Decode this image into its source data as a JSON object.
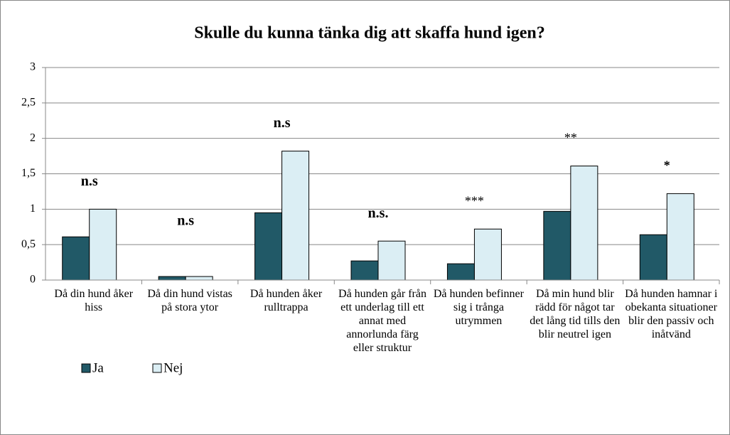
{
  "chart_data": {
    "type": "bar",
    "title": "Skulle du kunna tänka dig att skaffa hund igen?",
    "categories": [
      "Då din hund åker hiss",
      "Då din hund vistas på stora ytor",
      "Då hunden åker rulltrappa",
      "Då hunden går från ett underlag till ett annat med annorlunda färg eller struktur",
      "Då hunden befinner sig i trånga utrymmen",
      "Då min hund blir rädd för något tar det lång tid tills den blir neutrel igen",
      "Då hunden hamnar i obekanta situationer blir den passiv och inåtvänd"
    ],
    "series": [
      {
        "name": "Ja",
        "color": "#215967",
        "values": [
          0.61,
          0.05,
          0.95,
          0.27,
          0.23,
          0.97,
          0.64
        ]
      },
      {
        "name": "Nej",
        "color": "#dbeef4",
        "values": [
          1.0,
          0.05,
          1.82,
          0.55,
          0.72,
          1.61,
          1.22
        ]
      }
    ],
    "annotations": [
      "n.s",
      "n.s",
      "n.s",
      "n.s.",
      "***",
      "**",
      "*"
    ],
    "ylim": [
      0,
      3
    ],
    "yticks": [
      0,
      {
        "value": 0.5,
        "label": "0,5"
      },
      1,
      {
        "value": 1.5,
        "label": "1,5"
      },
      2,
      {
        "value": 2.5,
        "label": "2,5"
      },
      3
    ],
    "grid": true
  }
}
